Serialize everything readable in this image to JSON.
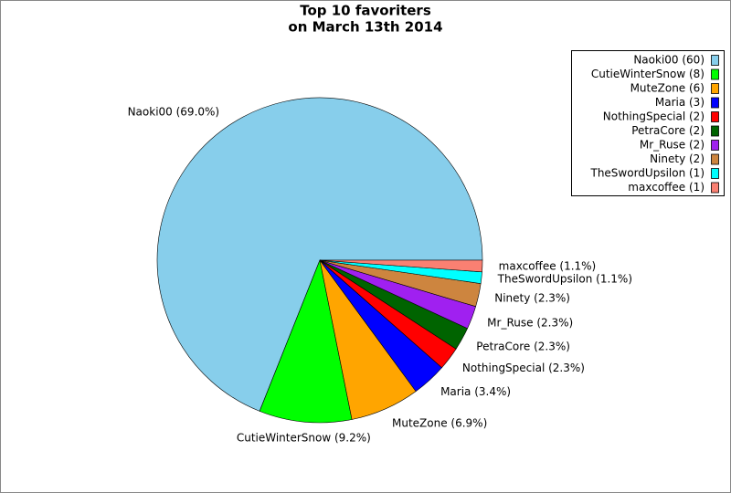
{
  "chart_data": {
    "type": "pie",
    "title": [
      "Top 10 favoriters",
      "on March 13th 2014"
    ],
    "values": [
      60,
      8,
      6,
      3,
      2,
      2,
      2,
      2,
      1,
      1
    ],
    "legend_labels": [
      "Naoki00 (60)",
      "CutieWinterSnow (8)",
      "MuteZone (6)",
      "Maria (3)",
      "NothingSpecial (2)",
      "PetraCore (2)",
      "Mr_Ruse (2)",
      "Ninety (2)",
      "TheSwordUpsilon (1)",
      "maxcoffee (1)"
    ],
    "slice_labels": [
      "Naoki00 (69.0%)",
      "CutieWinterSnow (9.2%)",
      "MuteZone (6.9%)",
      "Maria (3.4%)",
      "NothingSpecial (2.3%)",
      "PetraCore (2.3%)",
      "Mr_Ruse (2.3%)",
      "Ninety (2.3%)",
      "TheSwordUpsilon (1.1%)",
      "maxcoffee (1.1%)"
    ],
    "colors": [
      "#87ceeb",
      "#00ff00",
      "#ffa500",
      "#0000ff",
      "#ff0000",
      "#006400",
      "#a020f0",
      "#cd853f",
      "#00ffff",
      "#fa8072"
    ],
    "legend": "upper right"
  }
}
